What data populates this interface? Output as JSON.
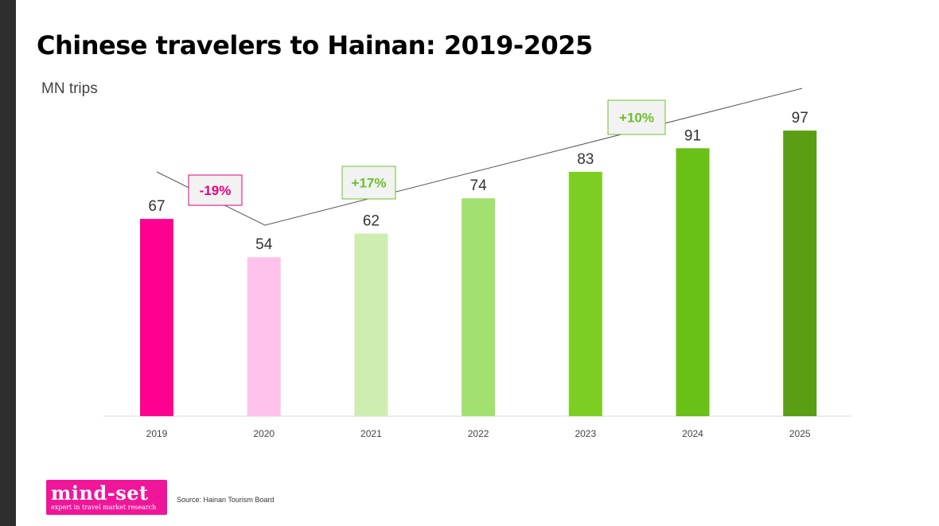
{
  "title": "Chinese travelers to Hainan: 2019-2025",
  "unit_label": "MN trips",
  "source": "Source: Hainan Tourism Board",
  "logo": {
    "name": "mind-set",
    "tagline": "expert in travel market research"
  },
  "chart_data": {
    "type": "bar",
    "title": "Chinese travelers to Hainan: 2019-2025",
    "ylabel": "MN trips",
    "categories": [
      "2019",
      "2020",
      "2021",
      "2022",
      "2023",
      "2024",
      "2025"
    ],
    "values": [
      67,
      54,
      62,
      74,
      83,
      91,
      97
    ],
    "colors": [
      "#ff0090",
      "#ffc2ea",
      "#cdeeb0",
      "#a2e070",
      "#7ccf22",
      "#69c016",
      "#5a9e14"
    ],
    "ylim": [
      0,
      100
    ],
    "grid": false,
    "legend": "none",
    "annotations": [
      {
        "text": "-19%",
        "color": "#e6007e"
      },
      {
        "text": "+17%",
        "color": "#6cc02b"
      },
      {
        "text": "+10%",
        "color": "#6cc02b"
      }
    ]
  }
}
